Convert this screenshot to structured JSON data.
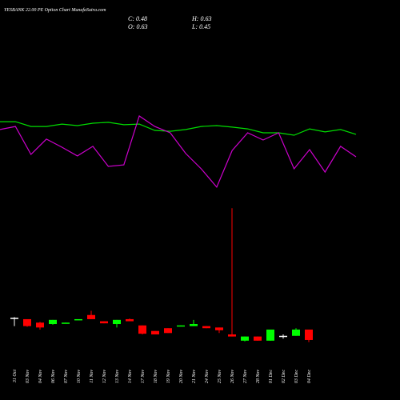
{
  "chart_data": {
    "type": "candlestick",
    "title": "YESBANK 22.00 PE Option Chart MunafaSutra.com",
    "summary": [
      "C: 0.48",
      "H: 0.63",
      "O: 0.63",
      "L: 0.45"
    ],
    "categories": [
      "31 Oct",
      "03 Nov",
      "04 Nov",
      "06 Nov",
      "07 Nov",
      "10 Nov",
      "11 Nov",
      "12 Nov",
      "13 Nov",
      "14 Nov",
      "17 Nov",
      "18 Nov",
      "19 Nov",
      "20 Nov",
      "21 Nov",
      "24 Nov",
      "25 Nov",
      "26 Nov",
      "27 Nov",
      "28 Nov",
      "01 Dec",
      "02 Dec",
      "03 Dec",
      "04 Dec"
    ],
    "open": [
      0.8,
      0.78,
      0.73,
      0.71,
      0.72,
      0.77,
      0.84,
      0.75,
      0.71,
      0.78,
      0.69,
      0.61,
      0.65,
      0.68,
      0.68,
      0.68,
      0.66,
      0.56,
      0.47,
      0.53,
      0.47,
      0.54,
      0.54,
      0.63
    ],
    "high": [
      0.81,
      0.78,
      0.74,
      0.77,
      0.73,
      0.78,
      0.9,
      0.75,
      0.77,
      0.79,
      0.69,
      0.61,
      0.65,
      0.69,
      0.77,
      0.68,
      0.66,
      2.38,
      0.53,
      0.53,
      0.63,
      0.56,
      0.65,
      0.63
    ],
    "low": [
      0.68,
      0.67,
      0.63,
      0.7,
      0.72,
      0.77,
      0.78,
      0.72,
      0.66,
      0.75,
      0.56,
      0.56,
      0.58,
      0.68,
      0.68,
      0.65,
      0.58,
      0.53,
      0.46,
      0.47,
      0.47,
      0.5,
      0.54,
      0.45
    ],
    "close": [
      0.8,
      0.68,
      0.66,
      0.77,
      0.73,
      0.78,
      0.78,
      0.72,
      0.77,
      0.75,
      0.57,
      0.56,
      0.58,
      0.69,
      0.71,
      0.65,
      0.62,
      0.53,
      0.53,
      0.47,
      0.63,
      0.54,
      0.63,
      0.48
    ],
    "up_color": "#00ff00",
    "down_color": "#ff0000",
    "flat_color": "#ffffff",
    "ylim": [
      0.4,
      2.4
    ],
    "series": [
      {
        "color": "#00dd00",
        "axis": "y2",
        "values": [
          85.3,
          85.3,
          81.3,
          81.3,
          83.3,
          82,
          84,
          84.7,
          82.7,
          83.3,
          78,
          77.3,
          78.7,
          81.3,
          82,
          80.7,
          79.3,
          76,
          76,
          74,
          79.3,
          76.7,
          78.7,
          74.7
        ]
      },
      {
        "color": "#cc00cc",
        "axis": "y2",
        "values": [
          78.7,
          81.3,
          58,
          70.7,
          64,
          56.7,
          64.7,
          48,
          49.3,
          90,
          81.3,
          76,
          58.7,
          46,
          30.7,
          61.3,
          76,
          70,
          76,
          46,
          62,
          43.3,
          64.7,
          56
        ]
      }
    ],
    "y2lim": [
      0,
      100
    ]
  }
}
